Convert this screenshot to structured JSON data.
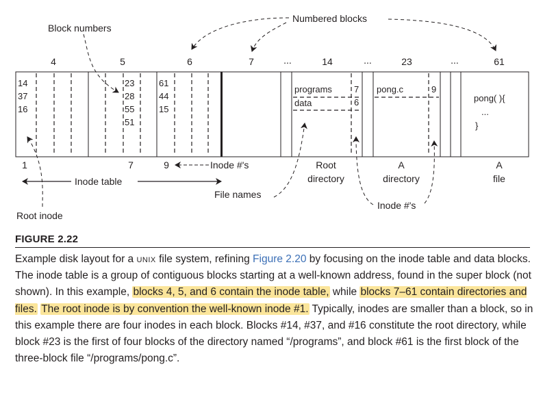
{
  "annotations": {
    "block_numbers": "Block numbers",
    "numbered_blocks": "Numbered blocks",
    "root_inode": "Root inode",
    "inode_table": "Inode table",
    "file_names": "File names",
    "inode_numbers_bottom": "Inode #'s",
    "inode_numbers_left": "Inode #'s"
  },
  "block_headers": [
    "4",
    "5",
    "6",
    "7",
    "14",
    "23",
    "61"
  ],
  "ellipsis": "...",
  "inode_cells": {
    "block4": [
      "14",
      "37",
      "16"
    ],
    "block5": [
      "23",
      "28",
      "55",
      "51"
    ],
    "block6": [
      "61",
      "44",
      "15"
    ]
  },
  "root_directory": {
    "entries": [
      {
        "name": "programs",
        "inode": "7"
      },
      {
        "name": "data",
        "inode": "6"
      }
    ],
    "label_line1": "Root",
    "label_line2": "directory"
  },
  "a_directory": {
    "entries": [
      {
        "name": "pong.c",
        "inode": "9"
      }
    ],
    "label_line1": "A",
    "label_line2": "directory"
  },
  "a_file": {
    "content": [
      "pong( ){",
      "...",
      "}"
    ],
    "label_line1": "A",
    "label_line2": "file"
  },
  "bottom_numbers": [
    "1",
    "7",
    "9"
  ],
  "figure": {
    "label": "FIGURE 2.22",
    "caption": {
      "p1": "Example disk layout for a ",
      "unix": "unix",
      "p2": " file system, refining ",
      "link": "Figure 2.20",
      "p3": " by focusing on the inode table and data blocks. The inode table is a group of contiguous blocks starting at a well-known address, found in the super block (not shown). In this example, ",
      "h1": "blocks 4, 5, and 6 contain the inode table,",
      "p4": " while ",
      "h2": "blocks 7–61 contain directories and files.",
      "p5": " ",
      "h3": "The root inode is by convention the well-known inode #1.",
      "p6": " Typically, inodes are smaller than a block, so in this example there are four inodes in each block. Blocks #14, #37, and #16 constitute the root directory, while block #23 is the first of four blocks of the directory named “/programs”, and block #61 is the first block of the three-block file “/programs/pong.c”."
    }
  }
}
